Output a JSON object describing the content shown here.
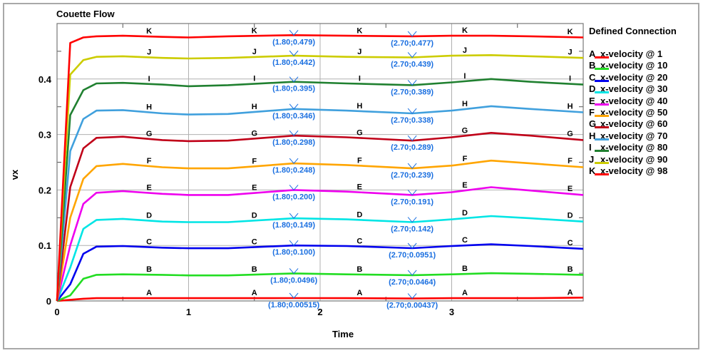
{
  "chart_data": {
    "type": "line",
    "title": "Couette Flow",
    "xlabel": "Time",
    "ylabel": "vx",
    "xlim": [
      0,
      4
    ],
    "ylim": [
      0,
      0.5
    ],
    "xticks": [
      "0",
      "1",
      "2",
      "3"
    ],
    "yticks": [
      "0",
      "0.1",
      "0.2",
      "0.3",
      "0.4"
    ],
    "grid": true,
    "legend": {
      "title": "Defined Connection",
      "placement": "right"
    },
    "x": [
      0,
      0.1,
      0.2,
      0.3,
      0.5,
      0.8,
      1.0,
      1.3,
      1.8,
      2.2,
      2.7,
      3.0,
      3.3,
      3.6,
      4.0
    ],
    "series": [
      {
        "letter": "A",
        "name": "x-velocity @ 1",
        "color": "#ff0000",
        "values": [
          0,
          0.002,
          0.004,
          0.005,
          0.005,
          0.005,
          0.005,
          0.005,
          0.00515,
          0.005,
          0.00437,
          0.005,
          0.005,
          0.005,
          0.006
        ]
      },
      {
        "letter": "B",
        "name": "x-velocity @ 10",
        "color": "#22dd22",
        "values": [
          0,
          0.01,
          0.04,
          0.047,
          0.048,
          0.047,
          0.046,
          0.046,
          0.0496,
          0.048,
          0.0464,
          0.048,
          0.05,
          0.049,
          0.047
        ]
      },
      {
        "letter": "C",
        "name": "x-velocity @ 20",
        "color": "#0000ee",
        "values": [
          0,
          0.03,
          0.085,
          0.098,
          0.099,
          0.096,
          0.095,
          0.095,
          0.1,
          0.099,
          0.0951,
          0.099,
          0.102,
          0.099,
          0.094
        ]
      },
      {
        "letter": "D",
        "name": "x-velocity @ 30",
        "color": "#00e5e5",
        "values": [
          0,
          0.06,
          0.13,
          0.146,
          0.148,
          0.143,
          0.142,
          0.142,
          0.149,
          0.147,
          0.142,
          0.147,
          0.153,
          0.149,
          0.143
        ]
      },
      {
        "letter": "E",
        "name": "x-velocity @ 40",
        "color": "#ee00ee",
        "values": [
          0,
          0.1,
          0.175,
          0.195,
          0.198,
          0.193,
          0.191,
          0.191,
          0.2,
          0.197,
          0.191,
          0.196,
          0.205,
          0.199,
          0.191
        ]
      },
      {
        "letter": "F",
        "name": "x-velocity @ 50",
        "color": "#ffa500",
        "values": [
          0,
          0.15,
          0.22,
          0.243,
          0.247,
          0.241,
          0.239,
          0.239,
          0.248,
          0.245,
          0.239,
          0.244,
          0.253,
          0.248,
          0.241
        ]
      },
      {
        "letter": "G",
        "name": "x-velocity @ 60",
        "color": "#c00018",
        "values": [
          0,
          0.205,
          0.275,
          0.294,
          0.296,
          0.29,
          0.288,
          0.289,
          0.298,
          0.295,
          0.289,
          0.295,
          0.303,
          0.298,
          0.29
        ]
      },
      {
        "letter": "H",
        "name": "x-velocity @ 70",
        "color": "#40a0dd",
        "values": [
          0,
          0.27,
          0.328,
          0.343,
          0.344,
          0.338,
          0.336,
          0.337,
          0.346,
          0.343,
          0.338,
          0.343,
          0.351,
          0.346,
          0.34
        ]
      },
      {
        "letter": "I",
        "name": "x-velocity @ 80",
        "color": "#208030",
        "values": [
          0,
          0.335,
          0.38,
          0.392,
          0.393,
          0.39,
          0.387,
          0.389,
          0.395,
          0.392,
          0.389,
          0.394,
          0.4,
          0.395,
          0.39
        ]
      },
      {
        "letter": "J",
        "name": "x-velocity @ 90",
        "color": "#cccc00",
        "values": [
          0,
          0.408,
          0.434,
          0.44,
          0.441,
          0.438,
          0.437,
          0.438,
          0.442,
          0.44,
          0.439,
          0.442,
          0.443,
          0.441,
          0.438
        ]
      },
      {
        "letter": "K",
        "name": "x-velocity @ 98",
        "color": "#ff0000",
        "values": [
          0,
          0.465,
          0.475,
          0.477,
          0.478,
          0.476,
          0.475,
          0.477,
          0.479,
          0.478,
          0.477,
          0.478,
          0.478,
          0.477,
          0.475
        ]
      }
    ],
    "annotations": [
      {
        "t": 1.8,
        "labels": [
          "(1.80;0.00515)",
          "(1.80;0.0496)",
          "(1.80;0.100)",
          "(1.80;0.149)",
          "(1.80;0.200)",
          "(1.80;0.248)",
          "(1.80;0.298)",
          "(1.80;0.346)",
          "(1.80;0.395)",
          "(1.80;0.442)",
          "(1.80;0.479)"
        ]
      },
      {
        "t": 2.7,
        "labels": [
          "(2.70;0.00437)",
          "(2.70;0.0464)",
          "(2.70;0.0951)",
          "(2.70;0.142)",
          "(2.70;0.191)",
          "(2.70;0.239)",
          "(2.70;0.289)",
          "(2.70;0.338)",
          "(2.70;0.389)",
          "(2.70;0.439)",
          "(2.70;0.477)"
        ]
      }
    ],
    "annotation_color": "#1a6fe0"
  }
}
